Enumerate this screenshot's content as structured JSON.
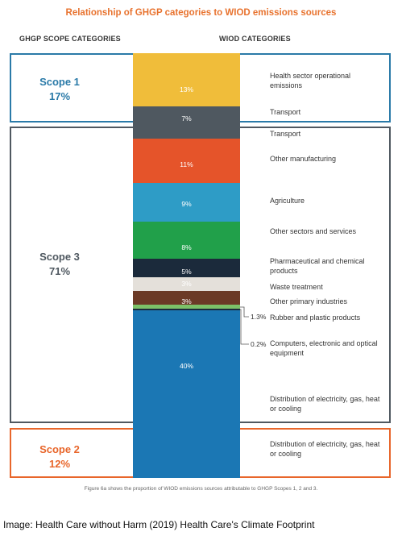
{
  "title": "Relationship of GHGP categories to WIOD emissions sources",
  "columns": {
    "left": "GHGP SCOPE CATEGORIES",
    "right": "WIOD CATEGORIES"
  },
  "scopes": [
    {
      "name": "Scope 1",
      "pct": "17%",
      "color": "#2a7aa8"
    },
    {
      "name": "Scope 3",
      "pct": "71%",
      "color": "#4f5860"
    },
    {
      "name": "Scope 2",
      "pct": "12%",
      "color": "#e8662b"
    }
  ],
  "chart_data": {
    "type": "bar",
    "orientation": "stacked-vertical",
    "title": "Relationship of GHGP categories to WIOD emissions sources",
    "segments": [
      {
        "category": "Health sector operational emissions",
        "scope": "Scope 1",
        "value": 13,
        "label": "13%",
        "color": "#f0bd3a"
      },
      {
        "category": "Transport",
        "scope": "Scope 1",
        "value": 7,
        "label": "7%",
        "color": "#4f5860"
      },
      {
        "category": "Transport",
        "scope": "Scope 3",
        "value": null,
        "label": "",
        "color": "#4f5860"
      },
      {
        "category": "Other manufacturing",
        "scope": "Scope 3",
        "value": 11,
        "label": "11%",
        "color": "#e5542a"
      },
      {
        "category": "Agriculture",
        "scope": "Scope 3",
        "value": 9,
        "label": "9%",
        "color": "#2e9cc6"
      },
      {
        "category": "Other sectors and services",
        "scope": "Scope 3",
        "value": 8,
        "label": "8%",
        "color": "#21a04a"
      },
      {
        "category": "Pharmaceutical and chemical products",
        "scope": "Scope 3",
        "value": 5,
        "label": "5%",
        "color": "#1b2a3b"
      },
      {
        "category": "Waste treatment",
        "scope": "Scope 3",
        "value": 3,
        "label": "3%",
        "color": "#e4e0da"
      },
      {
        "category": "Other primary industries",
        "scope": "Scope 3",
        "value": 3,
        "label": "3%",
        "color": "#6b3a26"
      },
      {
        "category": "Rubber and plastic products",
        "scope": "Scope 3",
        "value": 1.3,
        "label": "1.3%",
        "color": "#7cc268"
      },
      {
        "category": "Computers, electronic and optical equipment",
        "scope": "Scope 3",
        "value": 0.2,
        "label": "0.2%",
        "color": "#1b2a3b"
      },
      {
        "category": "Distribution of electricity, gas, heat or cooling",
        "scope": "Scope 3",
        "value": 40,
        "label": "40%",
        "color": "#1b77b4"
      },
      {
        "category": "Distribution of electricity, gas, heat or cooling",
        "scope": "Scope 2",
        "value": 12,
        "label": "",
        "color": "#1b77b4"
      }
    ]
  },
  "categories": [
    "Health sector operational emissions",
    "Transport",
    "Transport",
    "Other manufacturing",
    "Agriculture",
    "Other sectors and services",
    "Pharmaceutical and chemical products",
    "Waste treatment",
    "Other primary industries",
    "Rubber and plastic products",
    "Computers, electronic and optical equipment",
    "Distribution of electricity, gas, heat or cooling",
    "Distribution of electricity, gas, heat or cooling"
  ],
  "caption": "Figure 6a shows the proportion of WIOD emissions sources attributable to GHGP Scopes 1, 2 and 3.",
  "credit": "Image: Health Care without Harm (2019) Health Care's Climate Footprint"
}
